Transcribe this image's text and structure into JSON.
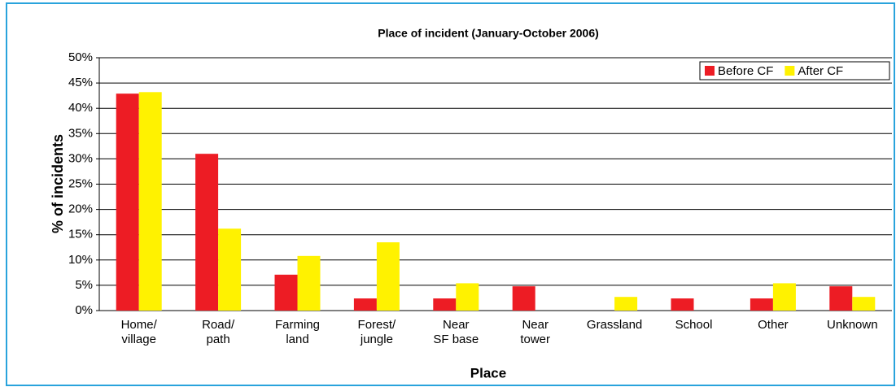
{
  "chart_data": {
    "type": "bar",
    "title": "Place of incident (January-October 2006)",
    "x_label": "Place",
    "y_label": "% of incidents",
    "categories": [
      "Home/\nvillage",
      "Road/\npath",
      "Farming\nland",
      "Forest/\njungle",
      "Near\nSF base",
      "Near\ntower",
      "Grassland",
      "School",
      "Other",
      "Unknown"
    ],
    "series": [
      {
        "name": "Before CF",
        "color": "#ed1c24",
        "values": [
          42.9,
          31.0,
          7.1,
          2.4,
          2.4,
          4.8,
          0,
          2.4,
          2.4,
          4.8
        ]
      },
      {
        "name": "After CF",
        "color": "#fff200",
        "values": [
          43.2,
          16.2,
          10.8,
          13.5,
          5.4,
          0,
          2.7,
          0,
          5.4,
          2.7
        ]
      }
    ],
    "ylim": [
      0,
      50
    ],
    "yticks": [
      {
        "value": 0,
        "label": "0%"
      },
      {
        "value": 5,
        "label": "5%"
      },
      {
        "value": 10,
        "label": "10%"
      },
      {
        "value": 15,
        "label": "15%"
      },
      {
        "value": 20,
        "label": "20%"
      },
      {
        "value": 25,
        "label": "25%"
      },
      {
        "value": 30,
        "label": "30%"
      },
      {
        "value": 35,
        "label": "35%"
      },
      {
        "value": 40,
        "label": "40%"
      },
      {
        "value": 45,
        "label": "45%"
      },
      {
        "value": 50,
        "label": "50%"
      }
    ],
    "grid": true,
    "legend": "upper right"
  }
}
